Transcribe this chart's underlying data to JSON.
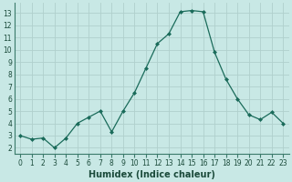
{
  "x": [
    0,
    1,
    2,
    3,
    4,
    5,
    6,
    7,
    8,
    9,
    10,
    11,
    12,
    13,
    14,
    15,
    16,
    17,
    18,
    19,
    20,
    21,
    22,
    23
  ],
  "y": [
    3.0,
    2.7,
    2.8,
    2.0,
    2.8,
    4.0,
    4.5,
    5.0,
    3.3,
    5.0,
    6.5,
    8.5,
    10.5,
    11.3,
    13.1,
    13.2,
    13.1,
    9.8,
    7.6,
    6.0,
    4.7,
    4.3,
    4.9,
    4.0
  ],
  "line_color": "#1a6b5a",
  "marker": "D",
  "marker_size": 2,
  "bg_color": "#c8e8e5",
  "grid_color": "#b0d0cc",
  "spine_color": "#3a7a6a",
  "xlabel": "Humidex (Indice chaleur)",
  "ylim": [
    1.5,
    13.8
  ],
  "xlim": [
    -0.5,
    23.5
  ],
  "yticks": [
    2,
    3,
    4,
    5,
    6,
    7,
    8,
    9,
    10,
    11,
    12,
    13
  ],
  "xticks": [
    0,
    1,
    2,
    3,
    4,
    5,
    6,
    7,
    8,
    9,
    10,
    11,
    12,
    13,
    14,
    15,
    16,
    17,
    18,
    19,
    20,
    21,
    22,
    23
  ],
  "xtick_labels": [
    "0",
    "1",
    "2",
    "3",
    "4",
    "5",
    "6",
    "7",
    "8",
    "9",
    "10",
    "11",
    "12",
    "13",
    "14",
    "15",
    "16",
    "17",
    "18",
    "19",
    "20",
    "21",
    "22",
    "23"
  ],
  "tick_fontsize": 5.5,
  "xlabel_fontsize": 7,
  "label_color": "#1a4a3a"
}
